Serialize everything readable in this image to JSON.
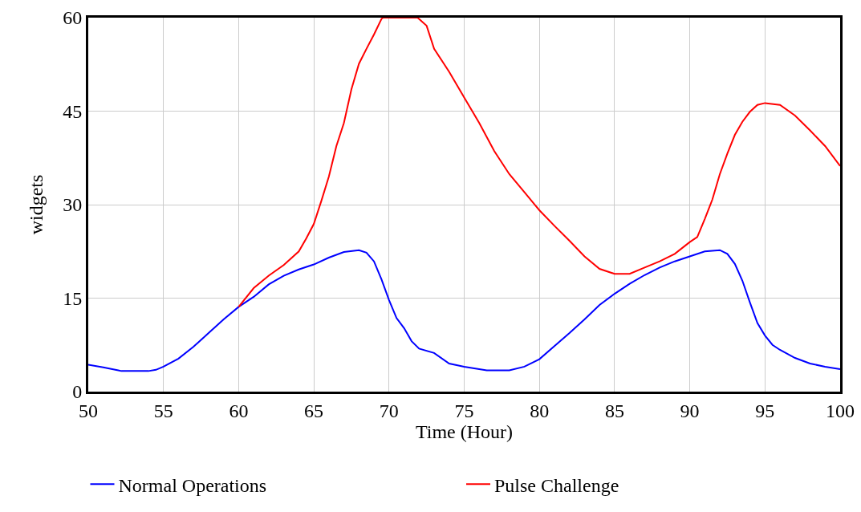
{
  "chart_data": {
    "type": "line",
    "xlabel": "Time (Hour)",
    "ylabel": "widgets",
    "xlim": [
      50,
      100
    ],
    "xticks": [
      50,
      55,
      60,
      65,
      70,
      75,
      80,
      85,
      90,
      95,
      100
    ],
    "ylim": [
      0,
      60
    ],
    "yticks": [
      0,
      15,
      30,
      45,
      60
    ],
    "grid": true,
    "legend": "bottom",
    "marker": "none",
    "line_style": "solid",
    "series": [
      {
        "name": "Normal Operations",
        "color": "#0000ff",
        "x": [
          50,
          51,
          52,
          52.2,
          54,
          54.5,
          55,
          56,
          57,
          58,
          59,
          60,
          61,
          62,
          63,
          64,
          65,
          66,
          67,
          68,
          68.5,
          69,
          69.5,
          70,
          70.5,
          71,
          71.5,
          72,
          73,
          74,
          75,
          76,
          76.5,
          78,
          79,
          80,
          81,
          82,
          83,
          84,
          85,
          86,
          87,
          88,
          89,
          90,
          91,
          92,
          92.5,
          93,
          93.5,
          94,
          94.5,
          95,
          95.5,
          96,
          97,
          98,
          99,
          100
        ],
        "values": [
          4.3,
          3.9,
          3.4,
          3.3,
          3.3,
          3.5,
          4.0,
          5.3,
          7.2,
          9.4,
          11.6,
          13.6,
          15.2,
          17.2,
          18.6,
          19.6,
          20.4,
          21.5,
          22.4,
          22.7,
          22.3,
          20.9,
          18,
          14.7,
          11.8,
          10.2,
          8.1,
          6.9,
          6.2,
          4.5,
          4.0,
          3.6,
          3.4,
          3.4,
          4.0,
          5.2,
          7.3,
          9.4,
          11.6,
          13.9,
          15.7,
          17.3,
          18.7,
          19.9,
          20.9,
          21.7,
          22.5,
          22.7,
          22.1,
          20.5,
          17.8,
          14.3,
          11,
          9.0,
          7.5,
          6.7,
          5.4,
          4.5,
          4.0,
          3.6
        ]
      },
      {
        "name": "Pulse Challenge",
        "color": "#ff0000",
        "x": [
          60,
          61,
          62,
          63,
          64,
          64.5,
          65,
          65.5,
          66,
          66.5,
          67,
          67.5,
          68,
          68.5,
          69,
          69.5,
          69.6,
          71.9,
          72.5,
          73,
          74,
          75,
          76,
          77,
          78,
          79,
          80,
          81,
          82,
          83,
          84,
          85,
          86,
          87,
          88,
          89,
          90,
          90.5,
          91,
          91.5,
          92,
          92.5,
          93,
          93.5,
          94,
          94.5,
          95,
          96,
          97,
          98,
          99,
          100
        ],
        "values": [
          13.6,
          16.6,
          18.6,
          20.3,
          22.5,
          24.6,
          26.9,
          30.6,
          34.5,
          39.4,
          43.1,
          48.5,
          52.6,
          55,
          57.3,
          59.8,
          60,
          60,
          58.7,
          55,
          51.3,
          47.2,
          43.1,
          38.6,
          34.9,
          32,
          29.1,
          26.6,
          24.2,
          21.7,
          19.7,
          18.9,
          18.9,
          19.9,
          20.9,
          22.1,
          24,
          24.8,
          27.7,
          30.8,
          34.9,
          38.2,
          41.2,
          43.3,
          44.9,
          46,
          46.3,
          46,
          44.3,
          41.9,
          39.4,
          36.2
        ]
      }
    ]
  }
}
